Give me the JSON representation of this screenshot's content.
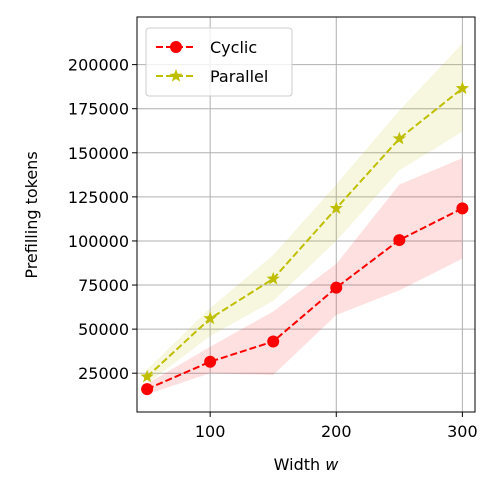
{
  "chart_data": {
    "type": "line",
    "title": "",
    "xlabel": "Width",
    "xlabel_var": "w",
    "ylabel": "Prefilling tokens",
    "xlim": [
      42,
      310
    ],
    "ylim": [
      3000,
      227000
    ],
    "x_ticks": [
      100,
      200,
      300
    ],
    "y_ticks": [
      25000,
      50000,
      75000,
      100000,
      125000,
      150000,
      175000,
      200000
    ],
    "grid": true,
    "legend_position": "top-left",
    "x": [
      50,
      100,
      150,
      200,
      250,
      300
    ],
    "series": [
      {
        "name": "Cyclic",
        "color": "#ff0000",
        "marker": "circle",
        "line_style": "dashed",
        "values": [
          16000,
          31500,
          43000,
          73500,
          100500,
          118500
        ],
        "band_lower": [
          13000,
          25000,
          24000,
          58000,
          72000,
          90000
        ],
        "band_upper": [
          19000,
          40000,
          60000,
          87000,
          132000,
          147000
        ]
      },
      {
        "name": "Parallel",
        "color": "#bfbf00",
        "marker": "star",
        "line_style": "dashed",
        "values": [
          23000,
          56000,
          78500,
          118500,
          158000,
          186500
        ],
        "band_lower": [
          19000,
          46000,
          66000,
          100000,
          140000,
          162000
        ],
        "band_upper": [
          27000,
          62000,
          92000,
          132000,
          174000,
          212000
        ]
      }
    ]
  }
}
